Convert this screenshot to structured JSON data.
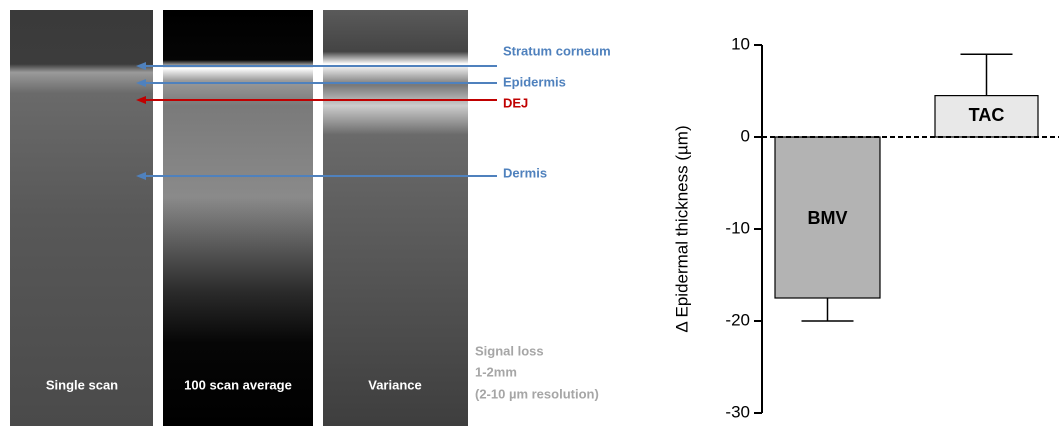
{
  "panels": [
    {
      "label": "Single scan"
    },
    {
      "label": "100 scan average"
    },
    {
      "label": "Variance"
    }
  ],
  "layers": [
    {
      "label": "Stratum corneum",
      "color": "#4f81bd"
    },
    {
      "label": "Epidermis",
      "color": "#4f81bd"
    },
    {
      "label": "DEJ",
      "color": "#c00000"
    },
    {
      "label": "Dermis",
      "color": "#4f81bd"
    }
  ],
  "note": [
    "Signal loss",
    "1-2mm",
    "(2-10 µm resolution)"
  ],
  "chart_data": {
    "type": "bar",
    "y_label": "Δ Epidermal thickness (µm)",
    "categories": [
      "BMV",
      "TAC"
    ],
    "values": [
      -17.5,
      4.5
    ],
    "errors": [
      2.5,
      4.5
    ],
    "colors": [
      "#b3b3b3",
      "#e8e8e8"
    ],
    "ylim": [
      -30,
      10
    ],
    "yticks": [
      -30,
      -20,
      -10,
      0,
      10
    ]
  }
}
